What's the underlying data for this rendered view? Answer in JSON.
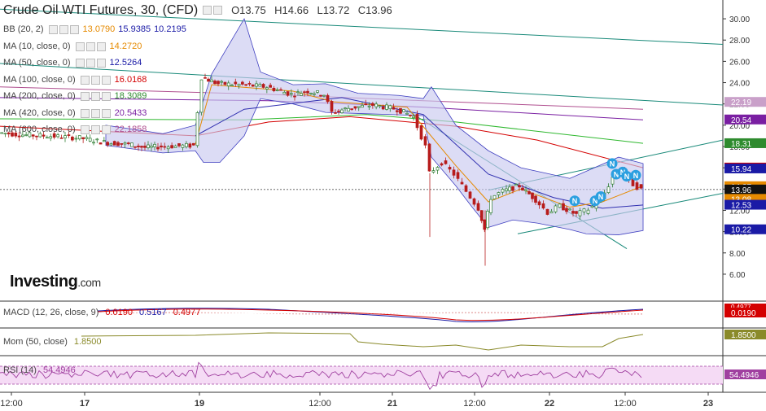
{
  "header": {
    "title": "Crude Oil WTI Futures, 30, (CFD)",
    "open": "O13.75",
    "high": "H14.66",
    "low": "L13.72",
    "close": "C13.96"
  },
  "logo": {
    "brand": "Investing",
    "suffix": ".com"
  },
  "indicators": [
    {
      "label": "BB (20, 2)",
      "values": [
        "13.0790",
        "15.9385",
        "10.2195"
      ],
      "colors": [
        "#e68a00",
        "#1a1aa6",
        "#1a1aa6"
      ]
    },
    {
      "label": "MA (10, close, 0)",
      "values": [
        "14.2720"
      ],
      "colors": [
        "#e68a00"
      ]
    },
    {
      "label": "MA (50, close, 0)",
      "values": [
        "12.5264"
      ],
      "colors": [
        "#1a1aa6"
      ]
    },
    {
      "label": "MA (100, close, 0)",
      "values": [
        "16.0168"
      ],
      "colors": [
        "#d40000"
      ]
    },
    {
      "label": "MA (200, close, 0)",
      "values": [
        "18.3089"
      ],
      "colors": [
        "#2e8b2e"
      ]
    },
    {
      "label": "MA (420, close, 0)",
      "values": [
        "20.5433"
      ],
      "colors": [
        "#7a1fa2"
      ]
    },
    {
      "label": "MA (600, close, 0)",
      "values": [
        "22.1858"
      ],
      "colors": [
        "#b05090"
      ]
    }
  ],
  "price_axis": {
    "ticks": [
      "30.00",
      "28.00",
      "26.00",
      "24.00",
      "22.00",
      "20.00",
      "18.00",
      "16.00",
      "14.00",
      "12.00",
      "10.00",
      "8.00",
      "6.00"
    ],
    "tick_values": [
      30,
      28,
      26,
      24,
      22,
      20,
      18,
      16,
      14,
      12,
      10,
      8,
      6
    ]
  },
  "price_labels": [
    {
      "text": "22.19",
      "value": 22.19,
      "color": "#c9a0c9"
    },
    {
      "text": "20.54",
      "value": 20.54,
      "color": "#7a1fa2"
    },
    {
      "text": "18.31",
      "value": 18.31,
      "color": "#2e8b2e"
    },
    {
      "text": "16.02",
      "value": 16.02,
      "color": "#d40000"
    },
    {
      "text": "15.94",
      "value": 15.94,
      "color": "#1a1aa6"
    },
    {
      "text": "14.27",
      "value": 14.27,
      "color": "#e68a00"
    },
    {
      "text": "13.96",
      "value": 13.96,
      "color": "#111111"
    },
    {
      "text": "13.08",
      "value": 13.08,
      "color": "#e68a00"
    },
    {
      "text": "12.53",
      "value": 12.53,
      "color": "#1a1aa6"
    },
    {
      "text": "10.22",
      "value": 10.22,
      "color": "#1a1aa6"
    }
  ],
  "time_axis": {
    "labels": [
      "12:00",
      "17",
      "19",
      "12:00",
      "21",
      "12:00",
      "22",
      "12:00",
      "23"
    ]
  },
  "sub_panels": {
    "macd": {
      "label": "MACD (12, 26, close, 9)",
      "values": [
        "0.0190",
        "0.5167",
        "0.4977"
      ],
      "colors": [
        "#d40000",
        "#1a1aa6",
        "#d40000"
      ],
      "axis_labels": [
        "0.4977",
        "0.0190"
      ]
    },
    "mom": {
      "label": "Mom (50, close)",
      "values": [
        "1.8500"
      ],
      "colors": [
        "#8a8a2a"
      ],
      "axis_labels": [
        "1.8500"
      ]
    },
    "rsi": {
      "label": "RSI (14)",
      "values": [
        "54.4946"
      ],
      "colors": [
        "#a040a0"
      ],
      "axis_labels": [
        "54.4946"
      ]
    }
  },
  "markers": {
    "label": "N"
  },
  "chart_data": {
    "type": "candlestick",
    "title": "Crude Oil WTI Futures, 30, (CFD)",
    "ylim": [
      5,
      31
    ],
    "grid": false,
    "last_close": 13.96,
    "close_path": [
      {
        "x": 0,
        "y": 19.3
      },
      {
        "x": 30,
        "y": 19.1
      },
      {
        "x": 60,
        "y": 19.0
      },
      {
        "x": 100,
        "y": 18.8
      },
      {
        "x": 130,
        "y": 18.4
      },
      {
        "x": 160,
        "y": 18.2
      },
      {
        "x": 180,
        "y": 17.9
      },
      {
        "x": 200,
        "y": 18.0
      },
      {
        "x": 240,
        "y": 18.1
      },
      {
        "x": 250,
        "y": 24.5
      },
      {
        "x": 270,
        "y": 23.9
      },
      {
        "x": 300,
        "y": 23.8
      },
      {
        "x": 330,
        "y": 23.6
      },
      {
        "x": 360,
        "y": 22.9
      },
      {
        "x": 380,
        "y": 23.2
      },
      {
        "x": 400,
        "y": 22.9
      },
      {
        "x": 410,
        "y": 21.2
      },
      {
        "x": 430,
        "y": 21.6
      },
      {
        "x": 460,
        "y": 21.9
      },
      {
        "x": 490,
        "y": 21.5
      },
      {
        "x": 510,
        "y": 20.8
      },
      {
        "x": 525,
        "y": 18.0
      },
      {
        "x": 530,
        "y": 15.5
      },
      {
        "x": 545,
        "y": 16.5
      },
      {
        "x": 560,
        "y": 15.4
      },
      {
        "x": 575,
        "y": 13.8
      },
      {
        "x": 590,
        "y": 12.2
      },
      {
        "x": 597,
        "y": 10.2
      },
      {
        "x": 605,
        "y": 13.2
      },
      {
        "x": 620,
        "y": 13.8
      },
      {
        "x": 640,
        "y": 14.3
      },
      {
        "x": 660,
        "y": 13.0
      },
      {
        "x": 675,
        "y": 11.8
      },
      {
        "x": 690,
        "y": 12.4
      },
      {
        "x": 710,
        "y": 11.6
      },
      {
        "x": 725,
        "y": 12.1
      },
      {
        "x": 740,
        "y": 12.9
      },
      {
        "x": 755,
        "y": 15.1
      },
      {
        "x": 765,
        "y": 15.9
      },
      {
        "x": 775,
        "y": 14.7
      },
      {
        "x": 790,
        "y": 13.96
      }
    ],
    "moving_averages": [
      {
        "name": "MA (10, close, 0)",
        "value": 14.272
      },
      {
        "name": "MA (50, close, 0)",
        "value": 12.5264
      },
      {
        "name": "MA (100, close, 0)",
        "value": 16.0168
      },
      {
        "name": "MA (200, close, 0)",
        "value": 18.3089
      },
      {
        "name": "MA (420, close, 0)",
        "value": 20.5433
      },
      {
        "name": "MA (600, close, 0)",
        "value": 22.1858
      }
    ],
    "bollinger": {
      "name": "BB (20, 2)",
      "middle": 13.079,
      "upper": 15.9385,
      "lower": 10.2195
    }
  }
}
